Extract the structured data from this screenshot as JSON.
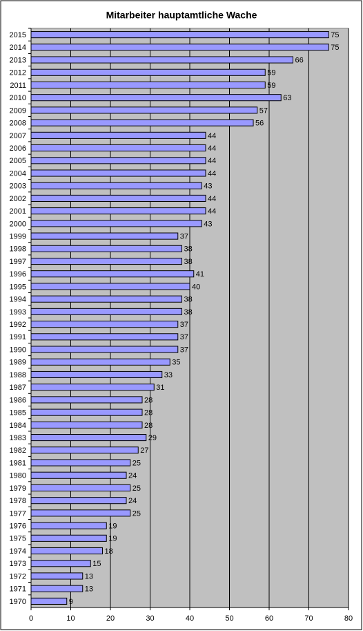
{
  "chart_data": {
    "type": "bar",
    "orientation": "horizontal",
    "title": "Mitarbeiter hauptamtliche Wache",
    "categories": [
      "2015",
      "2014",
      "2013",
      "2012",
      "2011",
      "2010",
      "2009",
      "2008",
      "2007",
      "2006",
      "2005",
      "2004",
      "2003",
      "2002",
      "2001",
      "2000",
      "1999",
      "1998",
      "1997",
      "1996",
      "1995",
      "1994",
      "1993",
      "1992",
      "1991",
      "1990",
      "1989",
      "1988",
      "1987",
      "1986",
      "1985",
      "1984",
      "1983",
      "1982",
      "1981",
      "1980",
      "1979",
      "1978",
      "1977",
      "1976",
      "1975",
      "1974",
      "1973",
      "1972",
      "1971",
      "1970"
    ],
    "values": [
      75,
      75,
      66,
      59,
      59,
      63,
      57,
      56,
      44,
      44,
      44,
      44,
      43,
      44,
      44,
      43,
      37,
      38,
      38,
      41,
      40,
      38,
      38,
      37,
      37,
      37,
      35,
      33,
      31,
      28,
      28,
      28,
      29,
      27,
      25,
      24,
      25,
      24,
      25,
      19,
      19,
      18,
      15,
      13,
      13,
      9
    ],
    "color": "#9999ff",
    "plot_background": "#c0c0c0",
    "xlim": [
      0,
      80
    ],
    "xticks": [
      0,
      10,
      20,
      30,
      40,
      50,
      60,
      70,
      80
    ],
    "grid": true
  }
}
